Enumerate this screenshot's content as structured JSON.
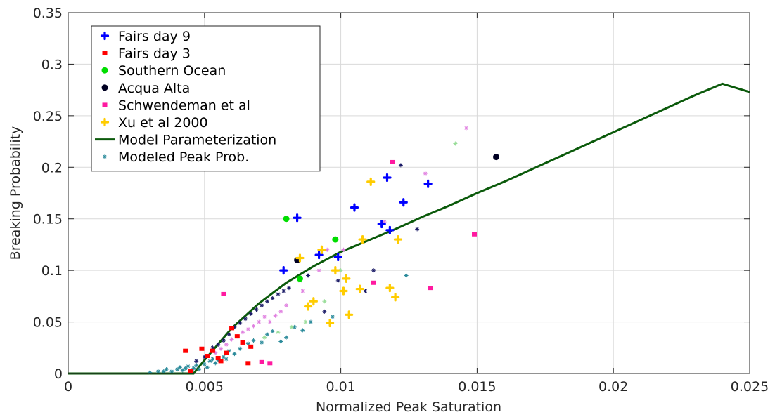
{
  "chart_data": {
    "type": "scatter",
    "title": "",
    "xlabel": "Normalized Peak Saturation",
    "ylabel": "Breaking Probability",
    "xlim": [
      0,
      0.025
    ],
    "ylim": [
      0,
      0.35
    ],
    "xticks": [
      0,
      0.005,
      0.01,
      0.015,
      0.02,
      0.025
    ],
    "yticks": [
      0,
      0.05,
      0.1,
      0.15,
      0.2,
      0.25,
      0.3,
      0.35
    ],
    "xtick_labels": [
      "0",
      "0.005",
      "0.01",
      "0.015",
      "0.02",
      "0.025"
    ],
    "ytick_labels": [
      "0",
      "0.05",
      "0.1",
      "0.15",
      "0.2",
      "0.25",
      "0.3",
      "0.35"
    ],
    "grid": true,
    "legend_position": "top-left",
    "series": [
      {
        "name": "Fairs day 9",
        "color": "#0000ff",
        "marker": "plus",
        "points": [
          [
            0.0079,
            0.1
          ],
          [
            0.0084,
            0.151
          ],
          [
            0.0092,
            0.115
          ],
          [
            0.0099,
            0.113
          ],
          [
            0.0105,
            0.161
          ],
          [
            0.0115,
            0.145
          ],
          [
            0.0118,
            0.139
          ],
          [
            0.0117,
            0.19
          ],
          [
            0.0123,
            0.166
          ],
          [
            0.0132,
            0.184
          ]
        ]
      },
      {
        "name": "Fairs day 3",
        "color": "#ff0000",
        "marker": "square",
        "points": [
          [
            0.0043,
            0.022
          ],
          [
            0.0045,
            0.002
          ],
          [
            0.0049,
            0.024
          ],
          [
            0.0051,
            0.017
          ],
          [
            0.0053,
            0.022
          ],
          [
            0.0055,
            0.015
          ],
          [
            0.0056,
            0.012
          ],
          [
            0.0058,
            0.02
          ],
          [
            0.006,
            0.044
          ],
          [
            0.0062,
            0.036
          ],
          [
            0.0064,
            0.03
          ],
          [
            0.0066,
            0.01
          ],
          [
            0.0067,
            0.026
          ]
        ]
      },
      {
        "name": "Southern Ocean",
        "color": "#00dd00",
        "marker": "circle",
        "points": [
          [
            0.008,
            0.15
          ],
          [
            0.0085,
            0.092
          ],
          [
            0.0098,
            0.13
          ]
        ]
      },
      {
        "name": "Acqua Alta",
        "color": "#000022",
        "marker": "circle",
        "points": [
          [
            0.0084,
            0.11
          ],
          [
            0.0157,
            0.21
          ]
        ]
      },
      {
        "name": "Schwendeman et al",
        "color": "#ff1aa0",
        "marker": "square",
        "points": [
          [
            0.0057,
            0.077
          ],
          [
            0.0071,
            0.011
          ],
          [
            0.0074,
            0.01
          ],
          [
            0.0112,
            0.088
          ],
          [
            0.0119,
            0.205
          ],
          [
            0.0133,
            0.083
          ],
          [
            0.0149,
            0.135
          ]
        ]
      },
      {
        "name": "Xu et al 2000",
        "color": "#ffcc00",
        "marker": "plus",
        "points": [
          [
            0.0085,
            0.112
          ],
          [
            0.0088,
            0.065
          ],
          [
            0.009,
            0.07
          ],
          [
            0.0093,
            0.12
          ],
          [
            0.0096,
            0.049
          ],
          [
            0.0098,
            0.1
          ],
          [
            0.0102,
            0.092
          ],
          [
            0.0103,
            0.057
          ],
          [
            0.0107,
            0.082
          ],
          [
            0.0108,
            0.13
          ],
          [
            0.0111,
            0.186
          ],
          [
            0.0118,
            0.083
          ],
          [
            0.012,
            0.074
          ],
          [
            0.0121,
            0.13
          ],
          [
            0.0101,
            0.08
          ]
        ]
      },
      {
        "name": "Modeled Peak Prob.",
        "color": "#2a8a9a",
        "marker": "asterisk",
        "points": [
          [
            0.003,
            0.001
          ],
          [
            0.0033,
            0.002
          ],
          [
            0.0035,
            0.002
          ],
          [
            0.0036,
            0.004
          ],
          [
            0.0038,
            0.002
          ],
          [
            0.004,
            0.004
          ],
          [
            0.0041,
            0.006
          ],
          [
            0.0042,
            0.003
          ],
          [
            0.0043,
            0.005
          ],
          [
            0.0044,
            0.007
          ],
          [
            0.0046,
            0.005
          ],
          [
            0.0047,
            0.008
          ],
          [
            0.0048,
            0.004
          ],
          [
            0.005,
            0.009
          ],
          [
            0.0051,
            0.006
          ],
          [
            0.0052,
            0.012
          ],
          [
            0.0053,
            0.014
          ],
          [
            0.0054,
            0.01
          ],
          [
            0.0055,
            0.013
          ],
          [
            0.0057,
            0.016
          ],
          [
            0.0058,
            0.014
          ],
          [
            0.0059,
            0.022
          ],
          [
            0.0061,
            0.019
          ],
          [
            0.0063,
            0.024
          ],
          [
            0.0066,
            0.029
          ],
          [
            0.0068,
            0.032
          ],
          [
            0.0071,
            0.03
          ],
          [
            0.0073,
            0.038
          ],
          [
            0.0075,
            0.041
          ],
          [
            0.0078,
            0.031
          ],
          [
            0.008,
            0.035
          ],
          [
            0.0083,
            0.045
          ],
          [
            0.0086,
            0.042
          ],
          [
            0.0089,
            0.05
          ],
          [
            0.0097,
            0.055
          ],
          [
            0.0124,
            0.095
          ]
        ]
      },
      {
        "name": "",
        "color": "#1a1a66",
        "marker": "asterisk",
        "points": [
          [
            0.0047,
            0.012
          ],
          [
            0.005,
            0.016
          ],
          [
            0.0053,
            0.025
          ],
          [
            0.0055,
            0.028
          ],
          [
            0.0057,
            0.032
          ],
          [
            0.0059,
            0.038
          ],
          [
            0.0061,
            0.045
          ],
          [
            0.0063,
            0.049
          ],
          [
            0.0065,
            0.053
          ],
          [
            0.0067,
            0.058
          ],
          [
            0.0069,
            0.062
          ],
          [
            0.0071,
            0.066
          ],
          [
            0.0073,
            0.07
          ],
          [
            0.0075,
            0.073
          ],
          [
            0.0077,
            0.077
          ],
          [
            0.0079,
            0.08
          ],
          [
            0.0081,
            0.083
          ],
          [
            0.0085,
            0.09
          ],
          [
            0.0088,
            0.095
          ],
          [
            0.0094,
            0.06
          ],
          [
            0.0099,
            0.09
          ],
          [
            0.0109,
            0.08
          ],
          [
            0.0112,
            0.1
          ],
          [
            0.0122,
            0.202
          ],
          [
            0.0128,
            0.14
          ]
        ]
      },
      {
        "name": "",
        "color": "#e080e0",
        "marker": "asterisk",
        "points": [
          [
            0.0054,
            0.02
          ],
          [
            0.0056,
            0.024
          ],
          [
            0.0058,
            0.028
          ],
          [
            0.006,
            0.033
          ],
          [
            0.0062,
            0.036
          ],
          [
            0.0064,
            0.04
          ],
          [
            0.0066,
            0.043
          ],
          [
            0.0068,
            0.046
          ],
          [
            0.007,
            0.05
          ],
          [
            0.0072,
            0.055
          ],
          [
            0.0074,
            0.05
          ],
          [
            0.0076,
            0.056
          ],
          [
            0.0078,
            0.06
          ],
          [
            0.008,
            0.066
          ],
          [
            0.0086,
            0.08
          ],
          [
            0.0092,
            0.1
          ],
          [
            0.0095,
            0.12
          ],
          [
            0.0101,
            0.12
          ],
          [
            0.0116,
            0.147
          ],
          [
            0.0131,
            0.194
          ],
          [
            0.0146,
            0.238
          ]
        ]
      },
      {
        "name": "",
        "color": "#99dd99",
        "marker": "asterisk",
        "points": [
          [
            0.0072,
            0.035
          ],
          [
            0.0077,
            0.04
          ],
          [
            0.0082,
            0.045
          ],
          [
            0.0087,
            0.05
          ],
          [
            0.0094,
            0.07
          ],
          [
            0.01,
            0.1
          ],
          [
            0.0142,
            0.223
          ]
        ]
      },
      {
        "name": "Model Parameterization",
        "color": "#0b5a0b",
        "type": "line",
        "points": [
          [
            0,
            0
          ],
          [
            0.0046,
            0
          ],
          [
            0.005,
            0.013
          ],
          [
            0.006,
            0.044
          ],
          [
            0.007,
            0.068
          ],
          [
            0.008,
            0.088
          ],
          [
            0.009,
            0.104
          ],
          [
            0.01,
            0.118
          ],
          [
            0.011,
            0.129
          ],
          [
            0.012,
            0.14
          ],
          [
            0.013,
            0.152
          ],
          [
            0.014,
            0.163
          ],
          [
            0.015,
            0.175
          ],
          [
            0.016,
            0.186
          ],
          [
            0.017,
            0.198
          ],
          [
            0.018,
            0.21
          ],
          [
            0.019,
            0.222
          ],
          [
            0.02,
            0.234
          ],
          [
            0.021,
            0.246
          ],
          [
            0.022,
            0.258
          ],
          [
            0.023,
            0.27
          ],
          [
            0.024,
            0.281
          ],
          [
            0.025,
            0.273
          ]
        ]
      }
    ],
    "legend": [
      {
        "label": "Fairs day 9",
        "color": "#0000ff",
        "marker": "plus"
      },
      {
        "label": "Fairs day 3",
        "color": "#ff0000",
        "marker": "square"
      },
      {
        "label": "Southern Ocean",
        "color": "#00dd00",
        "marker": "circle"
      },
      {
        "label": "Acqua Alta",
        "color": "#000022",
        "marker": "circle"
      },
      {
        "label": "Schwendeman et al",
        "color": "#ff1aa0",
        "marker": "square"
      },
      {
        "label": "Xu et al 2000",
        "color": "#ffcc00",
        "marker": "plus"
      },
      {
        "label": "Model Parameterization",
        "color": "#0b5a0b",
        "marker": "line"
      },
      {
        "label": "Modeled Peak Prob.",
        "color": "#2a8a9a",
        "marker": "asterisk"
      }
    ]
  }
}
